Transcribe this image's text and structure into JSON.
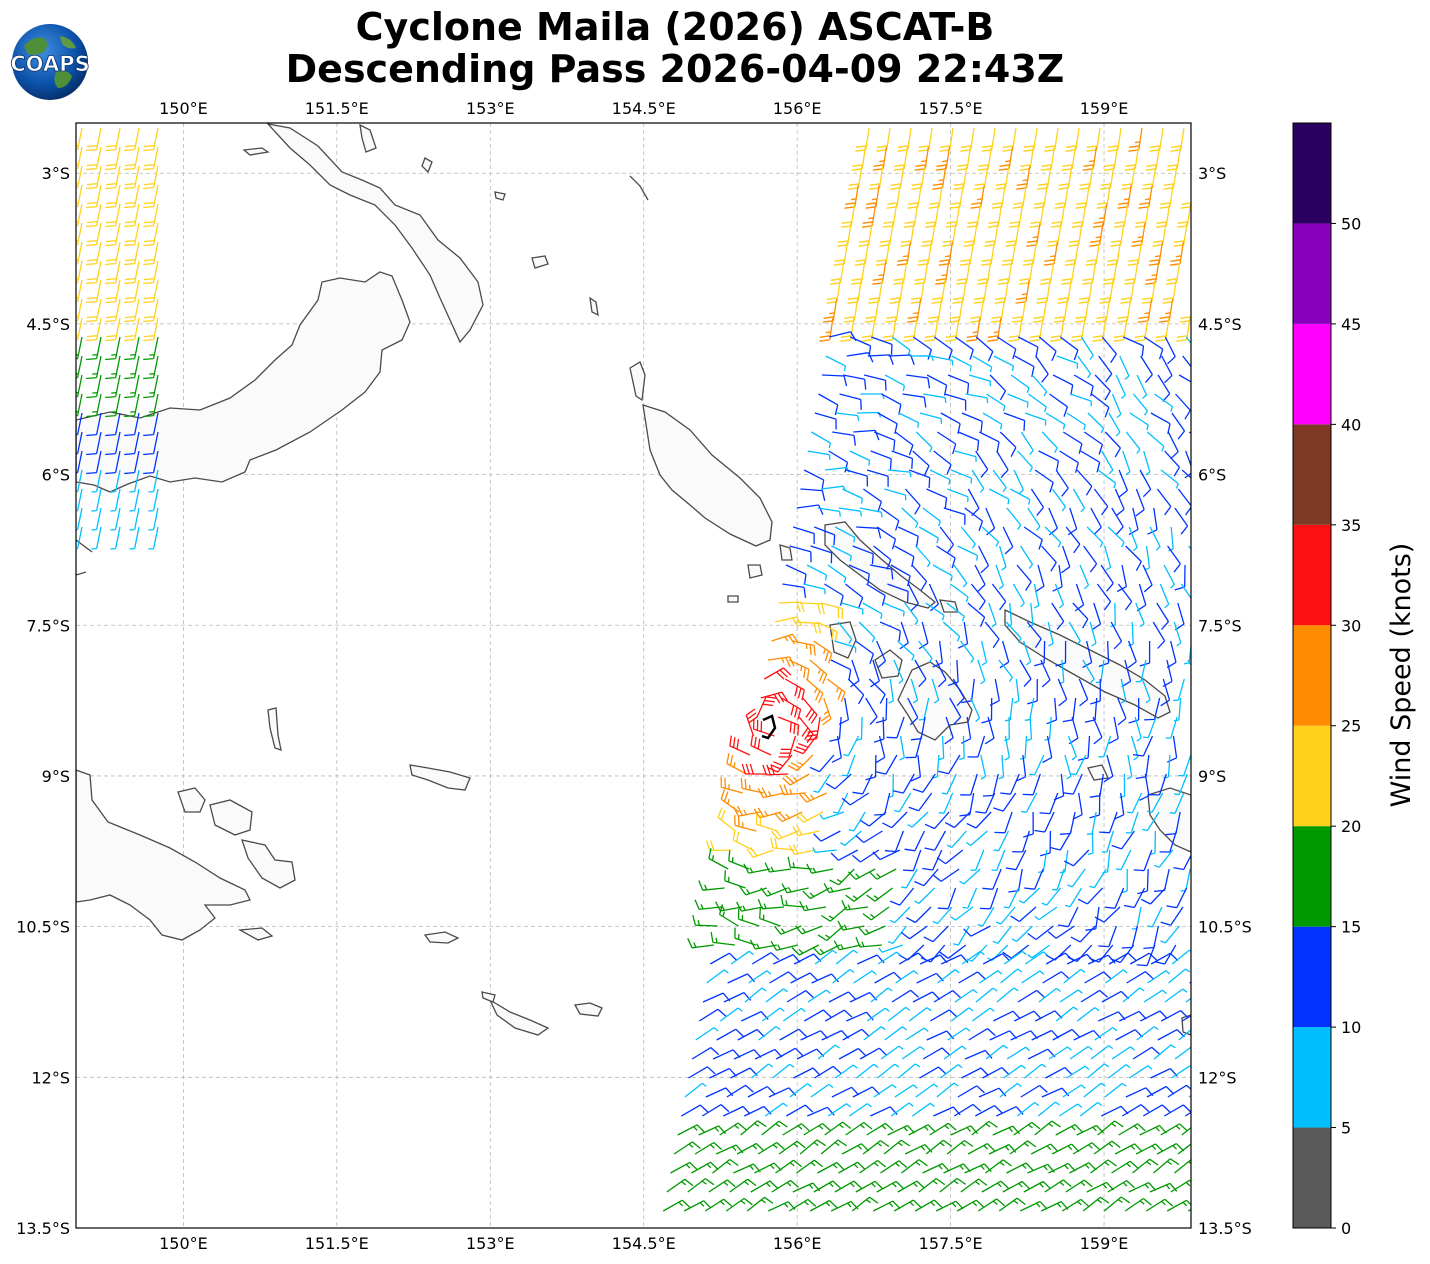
{
  "title": {
    "line1": "Cyclone Maila (2026) ASCAT-B",
    "line2": "Descending Pass 2026-04-09 22:43Z"
  },
  "logo": {
    "text": "COAPS",
    "icon": "globe-icon"
  },
  "map": {
    "lon_range": [
      148.95,
      159.85
    ],
    "lat_range": [
      -13.5,
      -2.5
    ],
    "lon_ticks": [
      "150°E",
      "151.5°E",
      "153°E",
      "154.5°E",
      "156°E",
      "157.5°E",
      "159°E"
    ],
    "lon_tick_values": [
      150,
      151.5,
      153,
      154.5,
      156,
      157.5,
      159
    ],
    "lat_ticks": [
      "3°S",
      "4.5°S",
      "6°S",
      "7.5°S",
      "9°S",
      "10.5°S",
      "12°S",
      "13.5°S"
    ],
    "lat_tick_values": [
      -3,
      -4.5,
      -6,
      -7.5,
      -9,
      -10.5,
      -12,
      -13.5
    ],
    "grid": true,
    "storm_center": {
      "lon": 155.9,
      "lat": -8.6,
      "icon": "storm-center-icon"
    }
  },
  "colorbar": {
    "label": "Wind Speed (knots)",
    "ticks": [
      "0",
      "5",
      "10",
      "15",
      "20",
      "25",
      "30",
      "35",
      "40",
      "45",
      "50"
    ],
    "bins": [
      {
        "from": 0,
        "to": 5,
        "color": "#5a5a5a"
      },
      {
        "from": 5,
        "to": 10,
        "color": "#00bfff"
      },
      {
        "from": 10,
        "to": 15,
        "color": "#0033ff"
      },
      {
        "from": 15,
        "to": 20,
        "color": "#009900"
      },
      {
        "from": 20,
        "to": 25,
        "color": "#ffd11a"
      },
      {
        "from": 25,
        "to": 30,
        "color": "#ff8c00"
      },
      {
        "from": 30,
        "to": 35,
        "color": "#ff1010"
      },
      {
        "from": 35,
        "to": 40,
        "color": "#7f3a26"
      },
      {
        "from": 40,
        "to": 45,
        "color": "#ff00ff"
      },
      {
        "from": 45,
        "to": 50,
        "color": "#8800bb"
      },
      {
        "from": 50,
        "to": 55,
        "color": "#2b0060"
      }
    ]
  }
}
